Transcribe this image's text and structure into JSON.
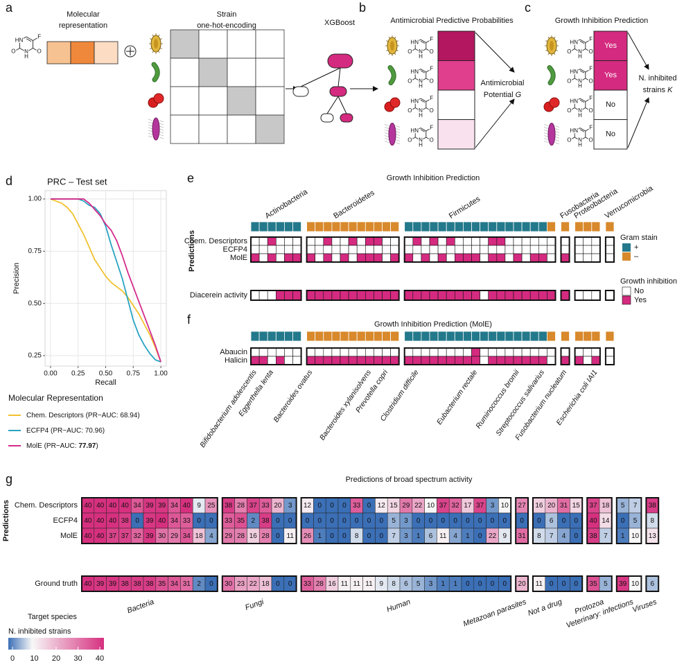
{
  "panel_a": {
    "letter": "a",
    "molecular_representation": [
      "Molecular",
      "representation"
    ],
    "strain": [
      "Strain",
      "one-hot-encoding"
    ],
    "model": "XGBoost",
    "embedding_colors": [
      "#f7c291",
      "#f0883c",
      "#fcdcc2"
    ]
  },
  "molecule": [
    "HN",
    "N",
    "H",
    "O",
    "O",
    "F"
  ],
  "panel_b": {
    "letter": "b",
    "title": "Antimicrobial Predictive Probabilities",
    "probability_colors": [
      "#b3175f",
      "#e03f8d",
      "#ffffff",
      "#f9e1ee"
    ],
    "output": [
      "Antimicrobial",
      "Potential ",
      "G"
    ]
  },
  "panel_c": {
    "letter": "c",
    "title": "Growth Inhibition Prediction",
    "predictions": [
      "Yes",
      "Yes",
      "No",
      "No"
    ],
    "output": [
      "N. inhibited",
      "strains ",
      "K"
    ]
  },
  "chart_data": {
    "type": "line",
    "letter": "d",
    "title": "PRC – Test set",
    "x_label": "Recall",
    "y_label": "Precision",
    "xlim": [
      -0.05,
      1.05
    ],
    "ylim": [
      0.2,
      1.04
    ],
    "xticks": [
      {
        "value": 0,
        "label": "0.00"
      },
      {
        "value": 0.25,
        "label": "0.25"
      },
      {
        "value": 0.5,
        "label": "0.50"
      },
      {
        "value": 0.75,
        "label": "0.75"
      },
      {
        "value": 1,
        "label": "1.00"
      }
    ],
    "yticks": [
      {
        "value": 0.25,
        "label": "0.25"
      },
      {
        "value": 0.5,
        "label": "0.50"
      },
      {
        "value": 0.75,
        "label": "0.75"
      },
      {
        "value": 1,
        "label": "1.00"
      }
    ],
    "grid": true,
    "legend_title": "Molecular Representation",
    "auc_prefix": " (PR−AUC: ",
    "auc_suffix": ")",
    "series": [
      {
        "name": "Chem. Descriptors",
        "auc": 68.94,
        "bold_auc": false,
        "color": "#f2c12e",
        "x": [
          0,
          0.05,
          0.1,
          0.15,
          0.2,
          0.25,
          0.3,
          0.35,
          0.4,
          0.45,
          0.5,
          0.55,
          0.6,
          0.65,
          0.7,
          0.75,
          0.8,
          0.85,
          0.9,
          0.95,
          1
        ],
        "y": [
          1,
          0.99,
          0.98,
          0.96,
          0.93,
          0.88,
          0.83,
          0.77,
          0.71,
          0.67,
          0.63,
          0.6,
          0.58,
          0.56,
          0.53,
          0.49,
          0.45,
          0.4,
          0.35,
          0.29,
          0.22
        ]
      },
      {
        "name": "ECFP4",
        "auc": 70.96,
        "bold_auc": false,
        "color": "#29a3c2",
        "x": [
          0,
          0.25,
          0.3,
          0.35,
          0.4,
          0.45,
          0.5,
          0.55,
          0.6,
          0.65,
          0.7,
          0.75,
          0.8,
          0.85,
          0.9,
          0.95,
          1
        ],
        "y": [
          1,
          1,
          0.99,
          0.97,
          0.96,
          0.93,
          0.87,
          0.78,
          0.7,
          0.62,
          0.52,
          0.42,
          0.35,
          0.3,
          0.26,
          0.23,
          0.22
        ]
      },
      {
        "name": "MolE",
        "auc": 77.97,
        "bold_auc": true,
        "color": "#d42a8c",
        "x": [
          0,
          0.3,
          0.35,
          0.4,
          0.45,
          0.5,
          0.55,
          0.6,
          0.65,
          0.7,
          0.75,
          0.8,
          0.85,
          0.9,
          0.95,
          1
        ],
        "y": [
          1,
          1,
          0.98,
          0.95,
          0.92,
          0.88,
          0.85,
          0.8,
          0.73,
          0.65,
          0.58,
          0.51,
          0.44,
          0.37,
          0.3,
          0.22
        ]
      }
    ]
  },
  "phyla": [
    {
      "name": "Actinobacteria",
      "gram": [
        "+",
        "+",
        "+",
        "+",
        "+",
        "+"
      ],
      "strains": [
        "Bifidobacterium adolescentis",
        null,
        "Eggerthella lenta",
        null,
        null,
        null
      ]
    },
    {
      "name": "Bacteroidetes",
      "gram": [
        "–",
        "–",
        "–",
        "–",
        "–",
        "–",
        "–",
        "–",
        "–",
        "–",
        "–"
      ],
      "strains": [
        "Bacteroides ovatus",
        null,
        null,
        null,
        null,
        null,
        null,
        "Bacteroides xylanisolvens",
        null,
        "Prevotella copri",
        null
      ]
    },
    {
      "name": "Firmicutes",
      "gram": [
        "+",
        "+",
        "+",
        "+",
        "+",
        "+",
        "+",
        "+",
        "+",
        "+",
        "+",
        "+",
        "+",
        "+",
        "+",
        "+",
        "+",
        "–"
      ],
      "strains": [
        null,
        "Clostridium difficile",
        null,
        null,
        null,
        null,
        null,
        null,
        "Eubacterium rectale",
        null,
        null,
        null,
        null,
        "Ruminococcus bromii",
        null,
        null,
        "Streptococcus salivarius",
        null
      ]
    },
    {
      "name": "Fusobacteria",
      "gram": [
        "–"
      ],
      "strains": [
        "Fusobacterium nucleatum"
      ]
    },
    {
      "name": "Proteobacteria",
      "gram": [
        "–",
        "–",
        "–"
      ],
      "strains": [
        null,
        null,
        "Escherichia coli IAI1"
      ]
    },
    {
      "name": "Verrucomicrobia",
      "gram": [
        "–"
      ],
      "strains": [
        null
      ]
    }
  ],
  "panel_e": {
    "letter": "e",
    "title": "Growth Inhibition Prediction",
    "y_label": "Predictions",
    "rows": [
      {
        "name": "Chem. Descriptors",
        "values": [
          [
            0,
            0,
            1,
            0,
            0,
            0
          ],
          [
            0,
            0,
            1,
            0,
            0,
            1,
            0,
            1,
            1,
            0,
            0
          ],
          [
            0,
            1,
            0,
            1,
            0,
            1,
            0,
            0,
            0,
            0,
            1,
            1,
            0,
            0,
            0,
            0,
            0,
            0
          ],
          [
            0
          ],
          [
            0,
            0,
            0
          ],
          [
            0
          ]
        ]
      },
      {
        "name": "ECFP4",
        "values": [
          [
            0,
            0,
            0,
            0,
            0,
            0
          ],
          [
            0,
            0,
            0,
            0,
            0,
            0,
            0,
            0,
            0,
            0,
            0
          ],
          [
            0,
            0,
            0,
            0,
            0,
            0,
            0,
            0,
            0,
            0,
            0,
            0,
            0,
            0,
            0,
            0,
            0,
            0
          ],
          [
            0
          ],
          [
            0,
            0,
            0
          ],
          [
            0
          ]
        ]
      },
      {
        "name": "MolE",
        "values": [
          [
            1,
            0,
            1,
            0,
            1,
            1
          ],
          [
            1,
            0,
            1,
            0,
            1,
            0,
            1,
            1,
            1,
            0,
            1
          ],
          [
            1,
            0,
            1,
            0,
            1,
            0,
            1,
            1,
            1,
            0,
            1,
            1,
            0,
            1,
            0,
            1,
            1,
            0
          ],
          [
            1
          ],
          [
            0,
            0,
            0
          ],
          [
            0
          ]
        ]
      }
    ],
    "diacerein": {
      "name": "Diacerein activity",
      "values": [
        [
          0,
          0,
          0,
          1,
          1,
          1
        ],
        [
          1,
          1,
          1,
          1,
          1,
          1,
          1,
          1,
          1,
          1,
          1
        ],
        [
          1,
          1,
          1,
          1,
          1,
          1,
          1,
          1,
          1,
          0,
          1,
          1,
          1,
          1,
          1,
          1,
          1,
          1
        ],
        [
          1
        ],
        [
          0,
          0,
          0
        ],
        [
          0
        ]
      ]
    },
    "gram_title": "Gram stain",
    "gram_legend": [
      {
        "label": "+",
        "color": "#23798b"
      },
      {
        "label": "–",
        "color": "#d8892c"
      }
    ],
    "growth_title": "Growth inhibition",
    "growth_legend": [
      {
        "label": "No",
        "color": "#ffffff"
      },
      {
        "label": "Yes",
        "color": "#d42a7f"
      }
    ]
  },
  "panel_f": {
    "letter": "f",
    "title": "Growth Inhibition Prediction (MolE)",
    "rows": [
      {
        "name": "Abaucin",
        "values": [
          [
            0,
            0,
            0,
            0,
            0,
            0
          ],
          [
            0,
            0,
            0,
            0,
            0,
            0,
            0,
            0,
            0,
            0,
            0
          ],
          [
            0,
            0,
            0,
            0,
            0,
            0,
            0,
            0,
            1,
            0,
            0,
            0,
            0,
            0,
            0,
            0,
            0,
            0
          ],
          [
            0
          ],
          [
            0,
            0,
            0
          ],
          [
            0
          ]
        ]
      },
      {
        "name": "Halicin",
        "values": [
          [
            1,
            1,
            0,
            1,
            0,
            0
          ],
          [
            1,
            1,
            1,
            1,
            1,
            1,
            1,
            1,
            1,
            1,
            1
          ],
          [
            1,
            1,
            1,
            1,
            1,
            1,
            1,
            1,
            1,
            0,
            1,
            1,
            1,
            1,
            1,
            1,
            1,
            0
          ],
          [
            1
          ],
          [
            1,
            0,
            1
          ],
          [
            0
          ]
        ]
      }
    ]
  },
  "panel_g": {
    "letter": "g",
    "title": "Predictions of broad spectrum activity",
    "y_label": "Predictions",
    "groups": [
      "Bacteria",
      "Fungi",
      "Human",
      "Metazoan parasites",
      "Not a drug",
      "Protozoa",
      "Veterinary: infections",
      "Viruses"
    ],
    "rows": [
      {
        "name": "Chem. Descriptors",
        "values": [
          [
            40,
            40,
            40,
            40,
            34,
            39,
            39,
            34,
            40,
            9,
            25
          ],
          [
            38,
            28,
            37,
            33,
            20,
            3
          ],
          [
            12,
            0,
            0,
            0,
            33,
            0,
            12,
            15,
            29,
            22,
            10,
            37,
            32,
            17,
            37,
            3,
            10
          ],
          [
            27
          ],
          [
            16,
            20,
            31,
            15
          ],
          [
            37,
            18
          ],
          [
            5,
            7
          ],
          [
            38
          ]
        ]
      },
      {
        "name": "ECFP4",
        "values": [
          [
            40,
            40,
            40,
            38,
            0,
            39,
            40,
            34,
            33,
            0,
            0
          ],
          [
            33,
            35,
            2,
            38,
            0,
            0
          ],
          [
            0,
            0,
            0,
            0,
            0,
            0,
            0,
            5,
            3,
            0,
            0,
            0,
            0,
            0,
            0,
            0,
            0
          ],
          [
            0
          ],
          [
            0,
            6,
            0,
            0
          ],
          [
            40,
            14
          ],
          [
            0,
            5
          ],
          [
            8
          ]
        ]
      },
      {
        "name": "MolE",
        "values": [
          [
            40,
            40,
            37,
            37,
            32,
            39,
            30,
            29,
            34,
            18,
            4
          ],
          [
            29,
            28,
            16,
            28,
            0,
            11
          ],
          [
            26,
            1,
            0,
            0,
            8,
            0,
            0,
            7,
            3,
            1,
            6,
            11,
            4,
            1,
            0,
            22,
            9
          ],
          [
            31
          ],
          [
            8,
            7,
            4,
            0
          ],
          [
            38,
            7
          ],
          [
            1,
            10
          ],
          [
            13
          ]
        ]
      }
    ],
    "ground_truth": {
      "name": "Ground truth",
      "values": [
        [
          40,
          39,
          39,
          38,
          38,
          38,
          35,
          34,
          31,
          2,
          0
        ],
        [
          30,
          23,
          22,
          18,
          0,
          0
        ],
        [
          33,
          28,
          16,
          11,
          11,
          11,
          9,
          8,
          6,
          5,
          3,
          1,
          1,
          0,
          0,
          0,
          0
        ],
        [
          20
        ],
        [
          11,
          0,
          0,
          0
        ],
        [
          35,
          5
        ],
        [
          39,
          10
        ],
        [
          6
        ]
      ]
    },
    "legend_title": "Target species",
    "colorbar_title": "N. inhibited strains",
    "colors": [
      "#3b6fb6",
      "#f7f7f7",
      "#d6307f"
    ],
    "clim": [
      0,
      40
    ],
    "cmid": 10,
    "colorbar_ticks": [
      0,
      10,
      20,
      30,
      40
    ]
  }
}
